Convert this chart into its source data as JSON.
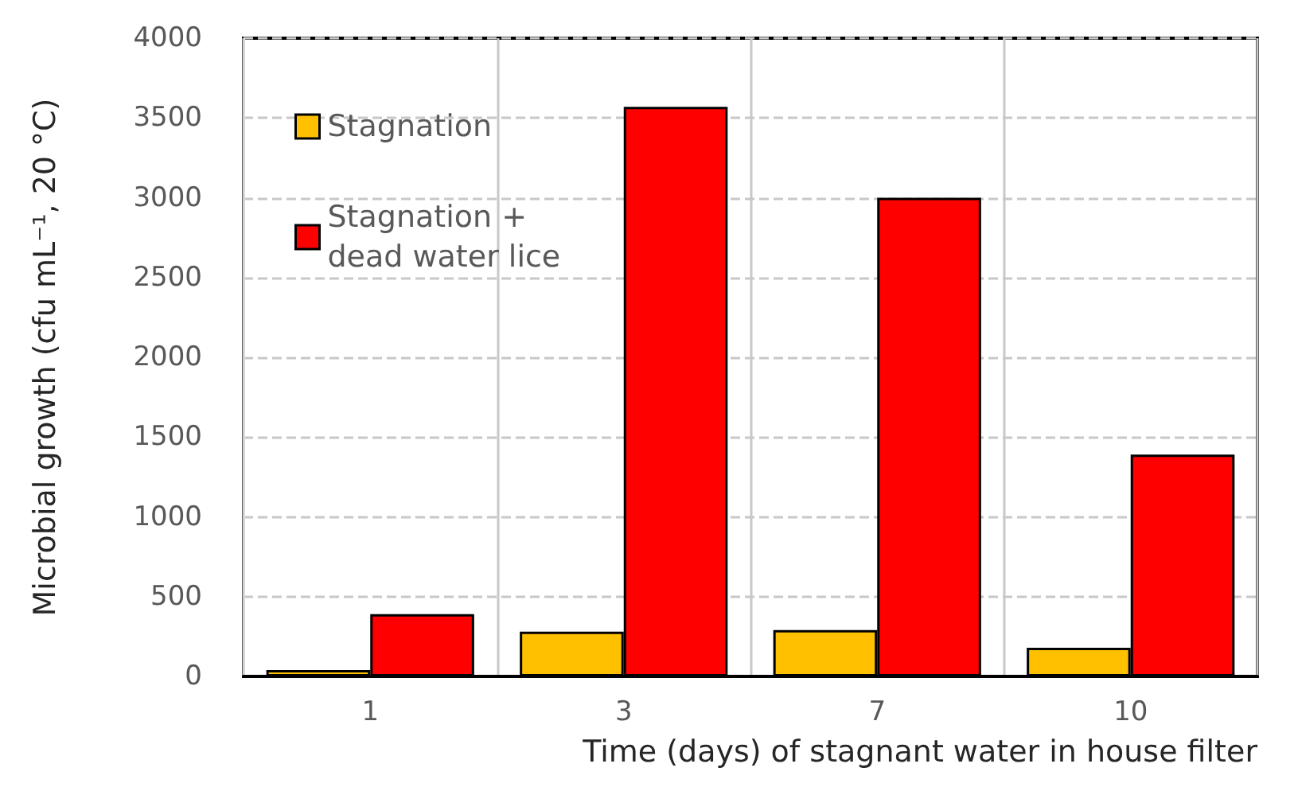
{
  "chart_data": {
    "type": "bar",
    "xlabel": "Time (days) of stagnant water in house filter",
    "ylabel": "Microbial growth (cfu mL⁻¹, 20 °C)",
    "categories": [
      "1",
      "3",
      "7",
      "10"
    ],
    "series": [
      {
        "name": "Stagnation",
        "color": "#ffc000",
        "values": [
          40,
          280,
          290,
          180
        ]
      },
      {
        "name": "Stagnation + dead water lice",
        "color": "#ff0000",
        "values": [
          390,
          3570,
          3000,
          1390
        ]
      }
    ],
    "ylim": [
      0,
      4000
    ],
    "yticks": [
      0,
      500,
      1000,
      1500,
      2000,
      2500,
      3000,
      3500,
      4000
    ],
    "grid": true,
    "legend": "top left"
  }
}
